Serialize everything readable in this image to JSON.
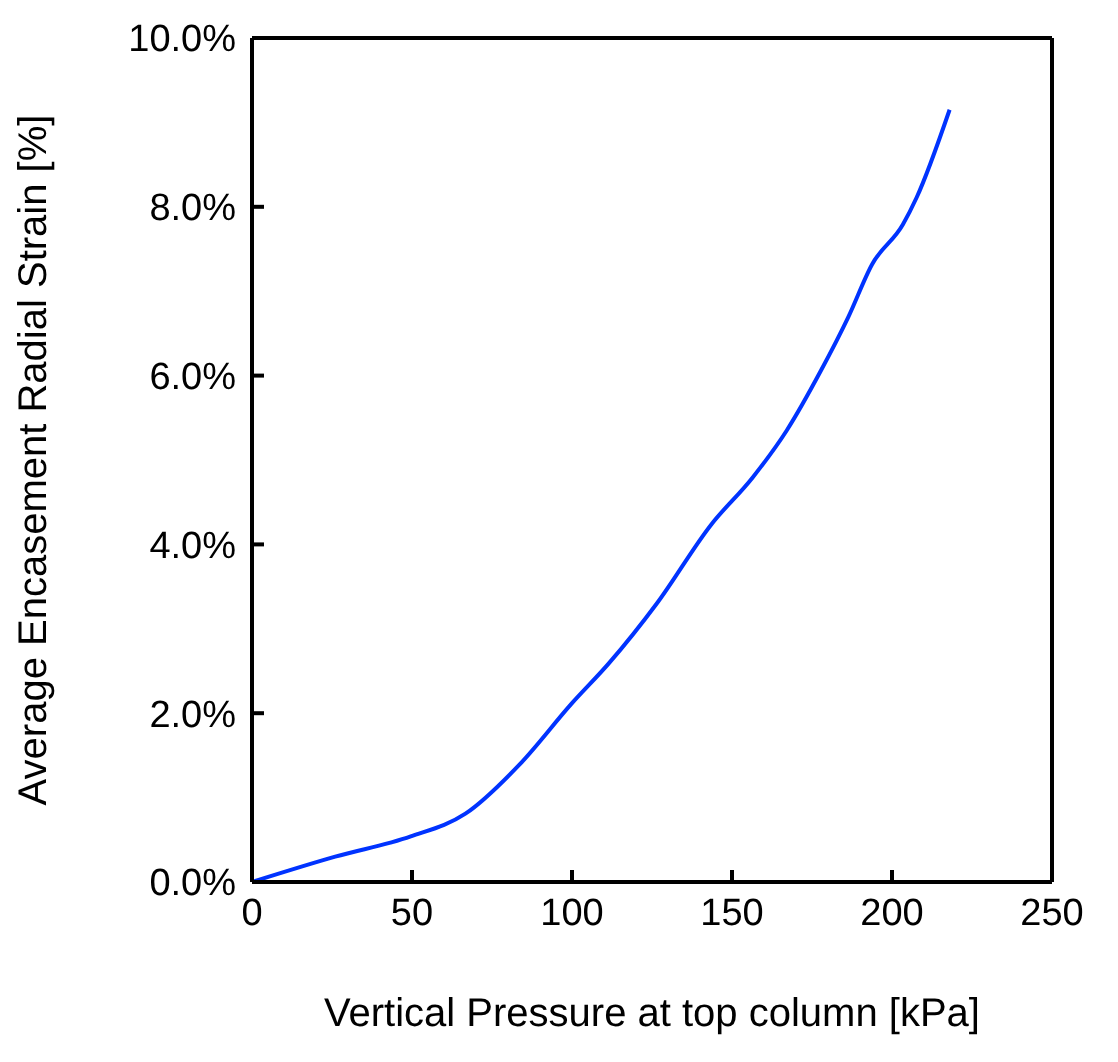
{
  "chart_data": {
    "type": "line",
    "xlabel": "Vertical Pressure at top column [kPa]",
    "ylabel": "Average Encasement Radial Strain [%]",
    "x": [
      0,
      26,
      49.6,
      66.7,
      83.8,
      99.8,
      111.5,
      126.5,
      143.6,
      156.4,
      167.1,
      177.8,
      186.3,
      193.8,
      203.4,
      207.7,
      218
    ],
    "series": [
      {
        "color": "#0033ff",
        "values": [
          0,
          0.3,
          0.54,
          0.81,
          1.4,
          2.11,
          2.59,
          3.3,
          4.24,
          4.79,
          5.35,
          6.06,
          6.69,
          7.32,
          7.79,
          8.11,
          9.15
        ]
      }
    ],
    "xlim": [
      0,
      250
    ],
    "xticks": [
      0,
      50,
      100,
      150,
      200,
      250
    ],
    "ylim": [
      0,
      10
    ],
    "yticks": [
      {
        "value": 0,
        "label": "0.0%"
      },
      {
        "value": 2,
        "label": "2.0%"
      },
      {
        "value": 4,
        "label": "4.0%"
      },
      {
        "value": 6,
        "label": "6.0%"
      },
      {
        "value": 8,
        "label": "8.0%"
      },
      {
        "value": 10,
        "label": "10.0%"
      }
    ],
    "grid": false,
    "legend": false,
    "marker": "none",
    "line_style": "solid"
  }
}
